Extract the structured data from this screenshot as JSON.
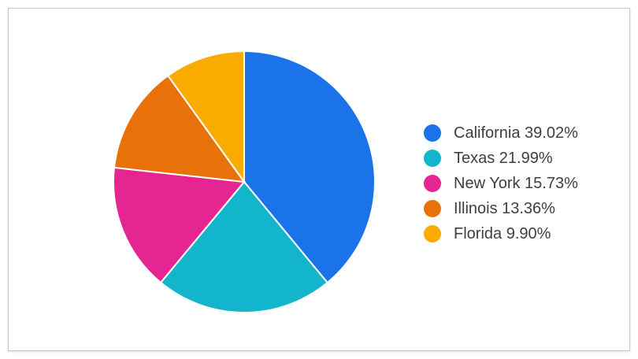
{
  "chart_data": {
    "type": "pie",
    "slices": [
      {
        "label": "California",
        "value": 39.02,
        "pct_label": "39.02%",
        "color": "#1a73e8"
      },
      {
        "label": "Texas",
        "value": 21.99,
        "pct_label": "21.99%",
        "color": "#12b5cb"
      },
      {
        "label": "New York",
        "value": 15.73,
        "pct_label": "15.73%",
        "color": "#e52592"
      },
      {
        "label": "Illinois",
        "value": 13.36,
        "pct_label": "13.36%",
        "color": "#e8710a"
      },
      {
        "label": "Florida",
        "value": 9.9,
        "pct_label": "9.90%",
        "color": "#f9ab00"
      }
    ],
    "legend_position": "right",
    "title": ""
  }
}
